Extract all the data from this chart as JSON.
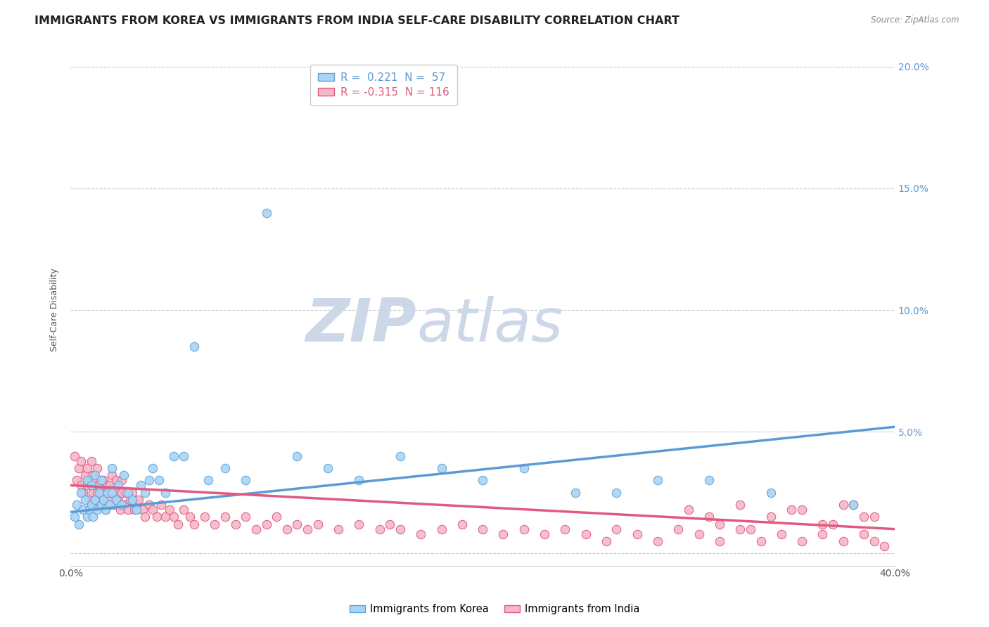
{
  "title": "IMMIGRANTS FROM KOREA VS IMMIGRANTS FROM INDIA SELF-CARE DISABILITY CORRELATION CHART",
  "source": "Source: ZipAtlas.com",
  "ylabel": "Self-Care Disability",
  "xlim": [
    0.0,
    0.4
  ],
  "ylim": [
    -0.005,
    0.205
  ],
  "xticks": [
    0.0,
    0.4
  ],
  "xticklabels": [
    "0.0%",
    "40.0%"
  ],
  "yticks": [
    0.0,
    0.05,
    0.1,
    0.15,
    0.2
  ],
  "ytick_labels_left": [
    "",
    "",
    "",
    "",
    ""
  ],
  "ytick_labels_right": [
    "",
    "5.0%",
    "10.0%",
    "15.0%",
    "20.0%"
  ],
  "korea_R": 0.221,
  "korea_N": 57,
  "india_R": -0.315,
  "india_N": 116,
  "korea_color": "#aad4f5",
  "korea_edge_color": "#5ba3d9",
  "india_color": "#f5b8c8",
  "india_edge_color": "#e05a80",
  "korea_line_color": "#5b9bd5",
  "india_line_color": "#e05a80",
  "watermark_zip": "ZIP",
  "watermark_atlas": "atlas",
  "watermark_color": "#ccd8e8",
  "background_color": "#ffffff",
  "grid_color": "#cccccc",
  "title_color": "#222222",
  "title_fontsize": 11.5,
  "axis_label_fontsize": 9,
  "tick_fontsize": 10,
  "legend_fontsize": 11,
  "korea_line_x0": 0.0,
  "korea_line_x1": 0.4,
  "korea_line_y0": 0.017,
  "korea_line_y1": 0.052,
  "india_line_x0": 0.0,
  "india_line_x1": 0.4,
  "india_line_y0": 0.028,
  "india_line_y1": 0.01,
  "korea_scatter_x": [
    0.002,
    0.003,
    0.004,
    0.005,
    0.006,
    0.007,
    0.008,
    0.008,
    0.009,
    0.01,
    0.01,
    0.011,
    0.012,
    0.012,
    0.013,
    0.014,
    0.015,
    0.015,
    0.016,
    0.017,
    0.018,
    0.019,
    0.02,
    0.02,
    0.022,
    0.023,
    0.025,
    0.026,
    0.028,
    0.03,
    0.032,
    0.034,
    0.036,
    0.038,
    0.04,
    0.043,
    0.046,
    0.05,
    0.055,
    0.06,
    0.067,
    0.075,
    0.085,
    0.095,
    0.11,
    0.125,
    0.14,
    0.16,
    0.18,
    0.2,
    0.22,
    0.245,
    0.265,
    0.285,
    0.31,
    0.34,
    0.38
  ],
  "korea_scatter_y": [
    0.015,
    0.02,
    0.012,
    0.025,
    0.018,
    0.022,
    0.015,
    0.03,
    0.018,
    0.02,
    0.028,
    0.015,
    0.022,
    0.032,
    0.018,
    0.025,
    0.02,
    0.03,
    0.022,
    0.018,
    0.025,
    0.02,
    0.025,
    0.035,
    0.022,
    0.028,
    0.02,
    0.032,
    0.025,
    0.022,
    0.018,
    0.028,
    0.025,
    0.03,
    0.035,
    0.03,
    0.025,
    0.04,
    0.04,
    0.085,
    0.03,
    0.035,
    0.03,
    0.14,
    0.04,
    0.035,
    0.03,
    0.04,
    0.035,
    0.03,
    0.035,
    0.025,
    0.025,
    0.03,
    0.03,
    0.025,
    0.02
  ],
  "india_scatter_x": [
    0.002,
    0.003,
    0.004,
    0.005,
    0.005,
    0.006,
    0.007,
    0.008,
    0.008,
    0.009,
    0.01,
    0.01,
    0.011,
    0.011,
    0.012,
    0.012,
    0.013,
    0.013,
    0.014,
    0.014,
    0.015,
    0.015,
    0.016,
    0.016,
    0.017,
    0.017,
    0.018,
    0.018,
    0.019,
    0.019,
    0.02,
    0.02,
    0.021,
    0.022,
    0.022,
    0.023,
    0.024,
    0.025,
    0.025,
    0.026,
    0.027,
    0.028,
    0.029,
    0.03,
    0.031,
    0.032,
    0.033,
    0.035,
    0.036,
    0.038,
    0.04,
    0.042,
    0.044,
    0.046,
    0.048,
    0.05,
    0.052,
    0.055,
    0.058,
    0.06,
    0.065,
    0.07,
    0.075,
    0.08,
    0.085,
    0.09,
    0.095,
    0.1,
    0.105,
    0.11,
    0.115,
    0.12,
    0.13,
    0.14,
    0.15,
    0.155,
    0.16,
    0.17,
    0.18,
    0.19,
    0.2,
    0.21,
    0.22,
    0.23,
    0.24,
    0.25,
    0.26,
    0.265,
    0.275,
    0.285,
    0.295,
    0.305,
    0.315,
    0.325,
    0.335,
    0.345,
    0.355,
    0.365,
    0.375,
    0.385,
    0.39,
    0.395,
    0.31,
    0.33,
    0.35,
    0.37,
    0.38,
    0.39,
    0.3,
    0.315,
    0.325,
    0.34,
    0.355,
    0.365,
    0.375,
    0.385
  ],
  "india_scatter_y": [
    0.04,
    0.03,
    0.035,
    0.028,
    0.038,
    0.025,
    0.032,
    0.028,
    0.035,
    0.022,
    0.03,
    0.038,
    0.025,
    0.032,
    0.022,
    0.03,
    0.025,
    0.035,
    0.02,
    0.028,
    0.03,
    0.025,
    0.022,
    0.03,
    0.018,
    0.025,
    0.028,
    0.022,
    0.02,
    0.028,
    0.025,
    0.032,
    0.02,
    0.025,
    0.03,
    0.022,
    0.018,
    0.025,
    0.03,
    0.02,
    0.025,
    0.018,
    0.022,
    0.025,
    0.018,
    0.02,
    0.022,
    0.018,
    0.015,
    0.02,
    0.018,
    0.015,
    0.02,
    0.015,
    0.018,
    0.015,
    0.012,
    0.018,
    0.015,
    0.012,
    0.015,
    0.012,
    0.015,
    0.012,
    0.015,
    0.01,
    0.012,
    0.015,
    0.01,
    0.012,
    0.01,
    0.012,
    0.01,
    0.012,
    0.01,
    0.012,
    0.01,
    0.008,
    0.01,
    0.012,
    0.01,
    0.008,
    0.01,
    0.008,
    0.01,
    0.008,
    0.005,
    0.01,
    0.008,
    0.005,
    0.01,
    0.008,
    0.005,
    0.01,
    0.005,
    0.008,
    0.005,
    0.008,
    0.005,
    0.008,
    0.005,
    0.003,
    0.015,
    0.01,
    0.018,
    0.012,
    0.02,
    0.015,
    0.018,
    0.012,
    0.02,
    0.015,
    0.018,
    0.012,
    0.02,
    0.015
  ]
}
